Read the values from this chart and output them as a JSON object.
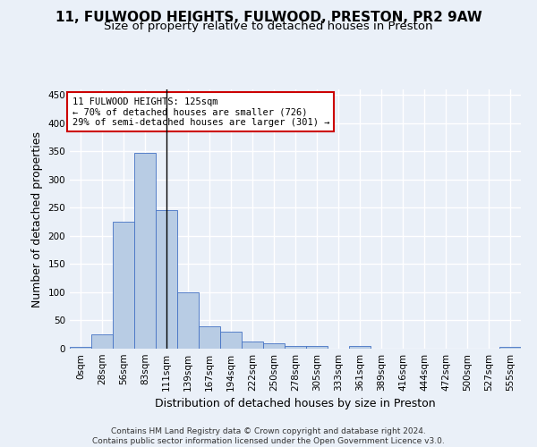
{
  "title": "11, FULWOOD HEIGHTS, FULWOOD, PRESTON, PR2 9AW",
  "subtitle": "Size of property relative to detached houses in Preston",
  "xlabel": "Distribution of detached houses by size in Preston",
  "ylabel": "Number of detached properties",
  "bin_labels": [
    "0sqm",
    "28sqm",
    "56sqm",
    "83sqm",
    "111sqm",
    "139sqm",
    "167sqm",
    "194sqm",
    "222sqm",
    "250sqm",
    "278sqm",
    "305sqm",
    "333sqm",
    "361sqm",
    "389sqm",
    "416sqm",
    "444sqm",
    "472sqm",
    "500sqm",
    "527sqm",
    "555sqm"
  ],
  "bar_heights": [
    3,
    25,
    226,
    347,
    246,
    100,
    40,
    30,
    13,
    10,
    5,
    5,
    0,
    4,
    0,
    0,
    0,
    0,
    0,
    0,
    3
  ],
  "bar_color": "#b8cce4",
  "bar_edge_color": "#4472c4",
  "vline_x": 4,
  "vline_color": "#000000",
  "annotation_line1": "11 FULWOOD HEIGHTS: 125sqm",
  "annotation_line2": "← 70% of detached houses are smaller (726)",
  "annotation_line3": "29% of semi-detached houses are larger (301) →",
  "annotation_box_color": "#ffffff",
  "annotation_box_edgecolor": "#cc0000",
  "footer_text": "Contains HM Land Registry data © Crown copyright and database right 2024.\nContains public sector information licensed under the Open Government Licence v3.0.",
  "ylim": [
    0,
    460
  ],
  "yticks": [
    0,
    50,
    100,
    150,
    200,
    250,
    300,
    350,
    400,
    450
  ],
  "bg_color": "#eaf0f8",
  "plot_bg_color": "#eaf0f8",
  "grid_color": "#ffffff",
  "title_fontsize": 11,
  "subtitle_fontsize": 9.5,
  "axis_label_fontsize": 9,
  "tick_fontsize": 7.5,
  "annotation_fontsize": 7.5,
  "footer_fontsize": 6.5
}
